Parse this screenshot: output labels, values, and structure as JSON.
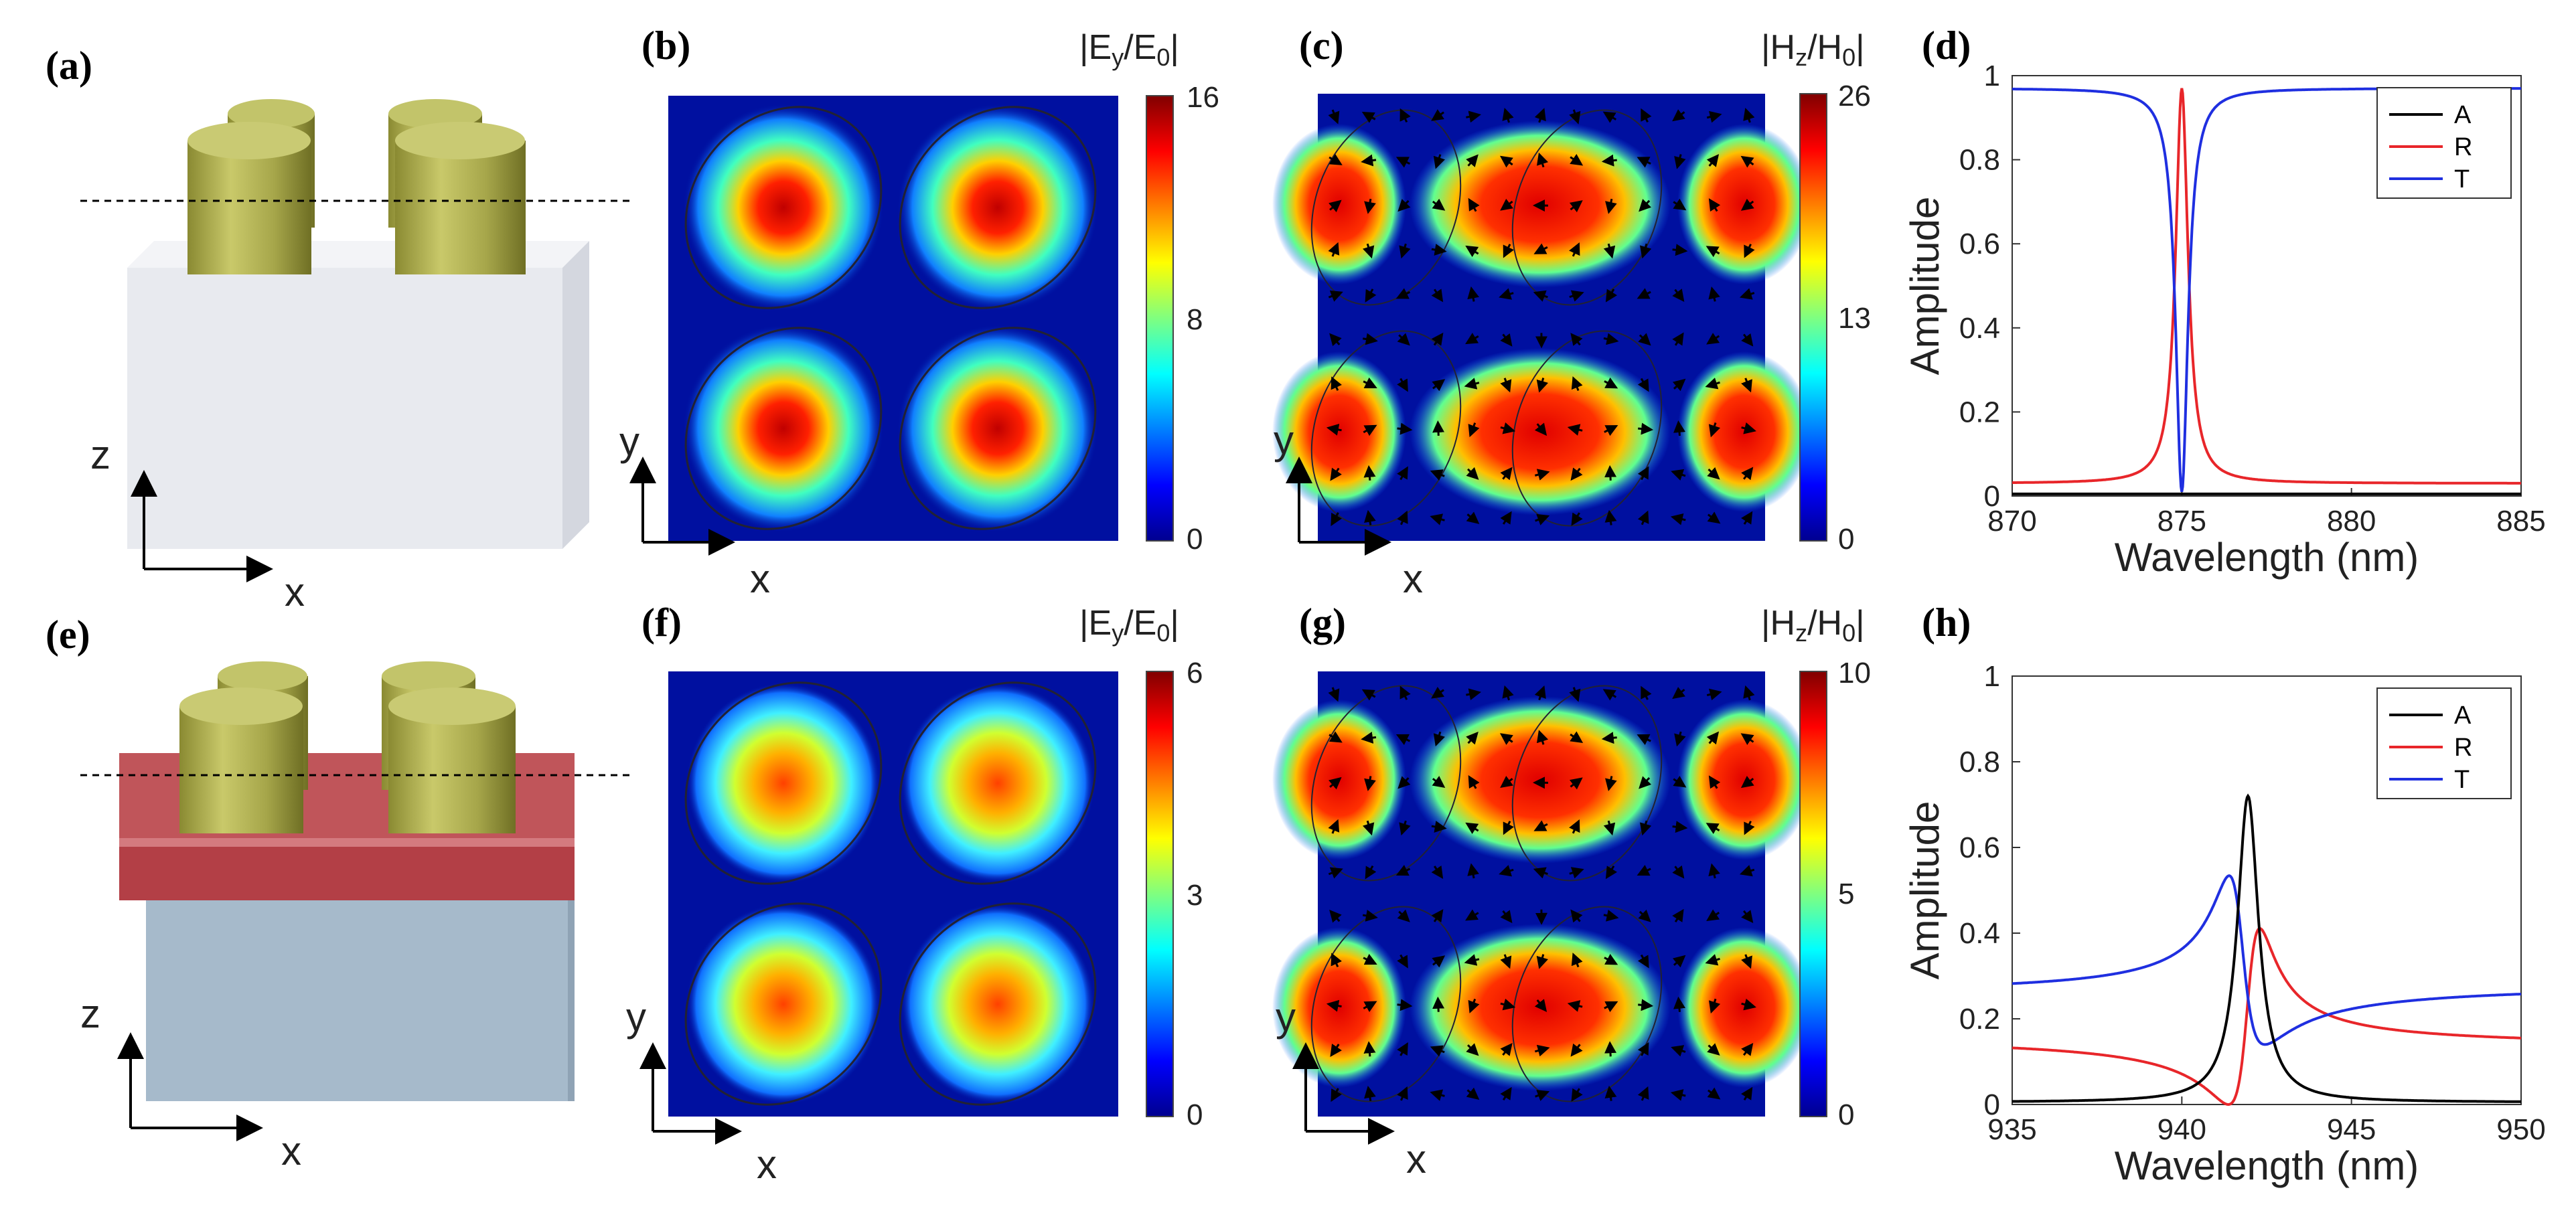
{
  "panels": {
    "a": {
      "label": "(a)",
      "axis_z": "z",
      "axis_x": "x"
    },
    "b": {
      "label": "(b)",
      "colorbar_title": "|Ey/E0|",
      "colorbar_ticks": [
        "16",
        "8",
        "0"
      ],
      "axis_y": "y",
      "axis_x": "x"
    },
    "c": {
      "label": "(c)",
      "colorbar_title": "|Hz/H0|",
      "colorbar_ticks": [
        "26",
        "13",
        "0"
      ],
      "axis_y": "y",
      "axis_x": "x"
    },
    "e": {
      "label": "(e)",
      "axis_z": "z",
      "axis_x": "x"
    },
    "f": {
      "label": "(f)",
      "colorbar_title": "|Ey/E0|",
      "colorbar_ticks": [
        "6",
        "3",
        "0"
      ],
      "axis_y": "y",
      "axis_x": "x"
    },
    "g": {
      "label": "(g)",
      "colorbar_title": "|Hz/H0|",
      "colorbar_ticks": [
        "10",
        "5",
        "0"
      ],
      "axis_y": "y",
      "axis_x": "x"
    }
  },
  "colors": {
    "A": "#000000",
    "R": "#e8262a",
    "T": "#1f2fe0",
    "substrate_top": "#e8eaef",
    "spacer": "#c0555a",
    "substrate_bottom": "#a6bacb",
    "pillar": "#b3b456"
  },
  "chart_data": [
    {
      "panel": "(d)",
      "type": "line",
      "xlabel": "Wavelength (nm)",
      "ylabel": "Amplitude",
      "xlim": [
        870,
        885
      ],
      "ylim": [
        0,
        1
      ],
      "xticks": [
        870,
        875,
        880,
        885
      ],
      "yticks": [
        0,
        0.2,
        0.4,
        0.6,
        0.8,
        1
      ],
      "legend": "top-right",
      "series": [
        {
          "name": "A",
          "color": "#000000",
          "model": "zero"
        },
        {
          "name": "R",
          "color": "#e8262a",
          "model": "lorentz_peak",
          "base": 0.03,
          "peak": 0.97,
          "center": 875,
          "hwhm": 0.22
        },
        {
          "name": "T",
          "color": "#1f2fe0",
          "model": "lorentz_dip",
          "base": 0.97,
          "min": 0.01,
          "center": 875,
          "hwhm": 0.22
        }
      ]
    },
    {
      "panel": "(h)",
      "type": "line",
      "xlabel": "Wavelength (nm)",
      "ylabel": "Amplitude",
      "xlim": [
        935,
        950
      ],
      "ylim": [
        0,
        1
      ],
      "xticks": [
        935,
        940,
        945,
        950
      ],
      "yticks": [
        0,
        0.2,
        0.4,
        0.6,
        0.8,
        1
      ],
      "legend": "top-right",
      "series": [
        {
          "name": "A",
          "color": "#000000",
          "model": "lorentz_peak",
          "base": 0.005,
          "peak": 0.72,
          "center": 941.95,
          "hwhm": 0.38
        },
        {
          "name": "R",
          "color": "#e8262a",
          "model": "fano",
          "left": 0.475,
          "right": 0.395,
          "center": 942.0,
          "width": 0.45,
          "q": 1.4,
          "min": 0.0
        },
        {
          "name": "T",
          "color": "#1f2fe0",
          "model": "fano",
          "left": 0.515,
          "right": 0.605,
          "center": 941.7,
          "width": 0.5,
          "q": -1.5,
          "min": 0.14
        }
      ]
    }
  ]
}
